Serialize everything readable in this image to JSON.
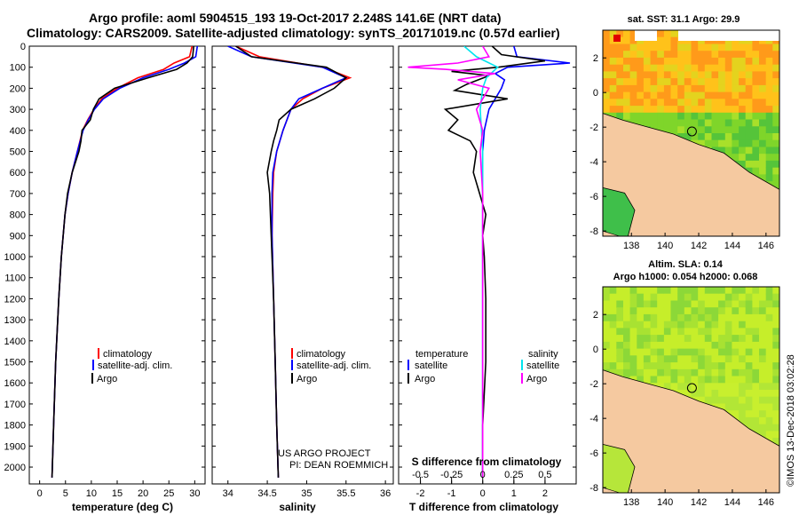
{
  "header": {
    "title_line1": "Argo profile: aoml 5904515_193 19-Oct-2017 2.248S 141.6E (NRT data)",
    "title_line2": "Climatology: CARS2009. Satellite-adjusted climatology: synTS_20171019.nc (0.57d earlier)"
  },
  "colors": {
    "climatology": "#ff0000",
    "satellite": "#0000ff",
    "argo": "#000000",
    "argo_salinity": "#ff00ff",
    "satellite_salinity": "#00e5ee",
    "land": "#f5c9a0"
  },
  "depth_axis": {
    "ticks": [
      "0",
      "100",
      "200",
      "300",
      "400",
      "500",
      "600",
      "700",
      "800",
      "900",
      "1000",
      "1100",
      "1200",
      "1300",
      "1400",
      "1500",
      "1600",
      "1700",
      "1800",
      "1900",
      "2000"
    ]
  },
  "chart_data": [
    {
      "id": "temperature",
      "type": "line",
      "xlabel": "temperature (deg C)",
      "xlim": [
        -2,
        32
      ],
      "ylim": [
        0,
        2080
      ],
      "x_ticks": [
        "0",
        "5",
        "10",
        "15",
        "20",
        "25",
        "30"
      ],
      "legend": [
        "climatology",
        "satellite-adj. clim.",
        "Argo"
      ],
      "series": [
        {
          "name": "climatology",
          "color": "#ff0000",
          "depth": [
            0,
            50,
            80,
            110,
            150,
            200,
            250,
            300,
            350,
            400,
            500,
            600,
            700,
            800,
            1000,
            1200,
            1500,
            1800,
            2050
          ],
          "values": [
            29.5,
            29.0,
            26.0,
            24.0,
            19.0,
            15.0,
            12.0,
            10.5,
            9.3,
            8.3,
            7.3,
            6.3,
            5.5,
            4.9,
            4.2,
            3.7,
            3.1,
            2.7,
            2.4
          ]
        },
        {
          "name": "satellite-adj. clim.",
          "color": "#0000ff",
          "depth": [
            0,
            50,
            80,
            110,
            150,
            200,
            250,
            300,
            350,
            400,
            500,
            600,
            700,
            800,
            1000,
            1200,
            1500,
            1800,
            2050
          ],
          "values": [
            30.5,
            30.2,
            28.0,
            25.0,
            20.0,
            15.5,
            12.3,
            10.6,
            9.4,
            8.4,
            7.3,
            6.3,
            5.5,
            4.9,
            4.2,
            3.7,
            3.1,
            2.7,
            2.4
          ]
        },
        {
          "name": "Argo",
          "color": "#000000",
          "depth": [
            0,
            50,
            80,
            110,
            150,
            200,
            250,
            300,
            350,
            400,
            450,
            500,
            600,
            700,
            800,
            1000,
            1200,
            1500,
            1800,
            2050
          ],
          "values": [
            29.8,
            29.6,
            28.5,
            26.5,
            21.0,
            14.5,
            11.5,
            10.4,
            9.8,
            8.2,
            8.0,
            7.6,
            6.3,
            5.4,
            4.9,
            4.2,
            3.7,
            3.1,
            2.7,
            2.4
          ]
        }
      ]
    },
    {
      "id": "salinity",
      "type": "line",
      "xlabel": "salinity",
      "xlim": [
        33.8,
        36.1
      ],
      "ylim": [
        0,
        2080
      ],
      "x_ticks": [
        "34",
        "34.5",
        "35",
        "35.5",
        "36"
      ],
      "legend": [
        "climatology",
        "satellite-adj. clim.",
        "Argo"
      ],
      "credit_line1": "US ARGO PROJECT",
      "credit_line2": "PI: DEAN ROEMMICH",
      "series": [
        {
          "name": "climatology",
          "color": "#ff0000",
          "depth": [
            0,
            50,
            100,
            150,
            200,
            250,
            300,
            400,
            500,
            600,
            700,
            900,
            1200,
            1500,
            1800,
            2050
          ],
          "values": [
            34.1,
            34.4,
            35.2,
            35.55,
            35.2,
            34.95,
            34.8,
            34.7,
            34.62,
            34.58,
            34.57,
            34.56,
            34.58,
            34.6,
            34.62,
            34.64
          ]
        },
        {
          "name": "satellite-adj. clim.",
          "color": "#0000ff",
          "depth": [
            0,
            50,
            100,
            150,
            200,
            250,
            300,
            400,
            500,
            600,
            700,
            900,
            1200,
            1500,
            1800,
            2050
          ],
          "values": [
            34.0,
            34.3,
            35.2,
            35.5,
            35.2,
            34.9,
            34.8,
            34.7,
            34.62,
            34.57,
            34.56,
            34.56,
            34.58,
            34.6,
            34.62,
            34.64
          ]
        },
        {
          "name": "Argo",
          "color": "#000000",
          "depth": [
            0,
            50,
            100,
            150,
            200,
            250,
            300,
            350,
            400,
            450,
            500,
            600,
            700,
            900,
            1200,
            1500,
            1800,
            2050
          ],
          "values": [
            34.1,
            34.3,
            35.25,
            35.5,
            35.35,
            35.1,
            34.8,
            34.65,
            34.62,
            34.58,
            34.55,
            34.5,
            34.53,
            34.55,
            34.58,
            34.6,
            34.62,
            34.64
          ]
        }
      ]
    },
    {
      "id": "difference",
      "type": "line",
      "xlabel": "T difference from climatology",
      "xlim": [
        -2.7,
        3.0
      ],
      "ylim": [
        0,
        2080
      ],
      "x_ticks": [
        "-2",
        "-1",
        "0",
        "1",
        "2"
      ],
      "s_axis_label": "S difference from climatology",
      "s_ticks": [
        "-0.5",
        "-0.25",
        "0",
        "0.25",
        "0.5"
      ],
      "legend_temperature_title": "temperature",
      "legend_salinity_title": "salinity",
      "legend_temperature": [
        "satellite",
        "Argo"
      ],
      "legend_salinity": [
        "satellite",
        "Argo"
      ],
      "series": [
        {
          "name": "temperature satellite",
          "color": "#0000ff",
          "depth": [
            0,
            50,
            80,
            100,
            130,
            160,
            200,
            250,
            300,
            400,
            500,
            700,
            1000,
            1500,
            2050
          ],
          "values": [
            1.0,
            1.1,
            2.8,
            0.8,
            0.4,
            0.7,
            0.6,
            0.4,
            0.2,
            0.05,
            0.0,
            0.0,
            0.0,
            0.0,
            0.0
          ]
        },
        {
          "name": "temperature Argo",
          "color": "#000000",
          "depth": [
            0,
            40,
            70,
            100,
            120,
            140,
            180,
            210,
            250,
            300,
            350,
            400,
            450,
            500,
            600,
            700,
            800,
            900,
            1000,
            1200,
            1500,
            1800,
            2050
          ],
          "values": [
            0.3,
            0.6,
            2.0,
            0.5,
            -1.0,
            0.2,
            -0.5,
            -0.9,
            0.8,
            -1.2,
            -0.8,
            -1.1,
            -0.4,
            -0.2,
            -0.3,
            -0.1,
            0.1,
            0.0,
            0.05,
            0.1,
            0.1,
            0.0,
            0.0
          ]
        },
        {
          "name": "salinity satellite",
          "color": "#00e5ee",
          "depth": [
            0,
            50,
            100,
            150,
            200,
            300,
            500,
            800,
            1200,
            1600,
            2050
          ],
          "values": [
            -0.15,
            -0.05,
            0.12,
            0.03,
            0.0,
            -0.02,
            0.0,
            0.0,
            0.0,
            0.0,
            0.0
          ]
        },
        {
          "name": "salinity Argo",
          "color": "#ff00ff",
          "depth": [
            0,
            50,
            80,
            100,
            110,
            130,
            160,
            200,
            300,
            400,
            500,
            700,
            1000,
            1500,
            2050
          ],
          "values": [
            0.0,
            0.05,
            -0.2,
            -0.6,
            -0.3,
            0.1,
            -0.2,
            0.05,
            -0.05,
            0.0,
            -0.02,
            0.0,
            0.0,
            0.0,
            0.0
          ]
        }
      ]
    },
    {
      "id": "map_sst",
      "type": "heatmap",
      "title": "sat. SST: 31.1 Argo: 29.9",
      "x_ticks": [
        "138",
        "140",
        "142",
        "144",
        "146"
      ],
      "y_ticks": [
        "2",
        "0",
        "-2",
        "-4",
        "-6",
        "-8"
      ],
      "xlim": [
        136.3,
        146.8
      ],
      "ylim": [
        -8.3,
        3.6
      ],
      "argo_position": {
        "lon": 141.6,
        "lat": -2.248
      }
    },
    {
      "id": "map_sla",
      "type": "heatmap",
      "title_line1": "Altim. SLA: 0.14",
      "title_line2": "Argo h1000: 0.054 h2000: 0.068",
      "x_ticks": [
        "138",
        "140",
        "142",
        "144",
        "146"
      ],
      "y_ticks": [
        "2",
        "0",
        "-2",
        "-4",
        "-6",
        "-8"
      ],
      "xlim": [
        136.3,
        146.8
      ],
      "ylim": [
        -8.3,
        3.6
      ],
      "argo_position": {
        "lon": 141.6,
        "lat": -2.248
      }
    }
  ],
  "footer": {
    "imos_stamp": "©IMOS 13-Dec-2018 03:02:28"
  }
}
